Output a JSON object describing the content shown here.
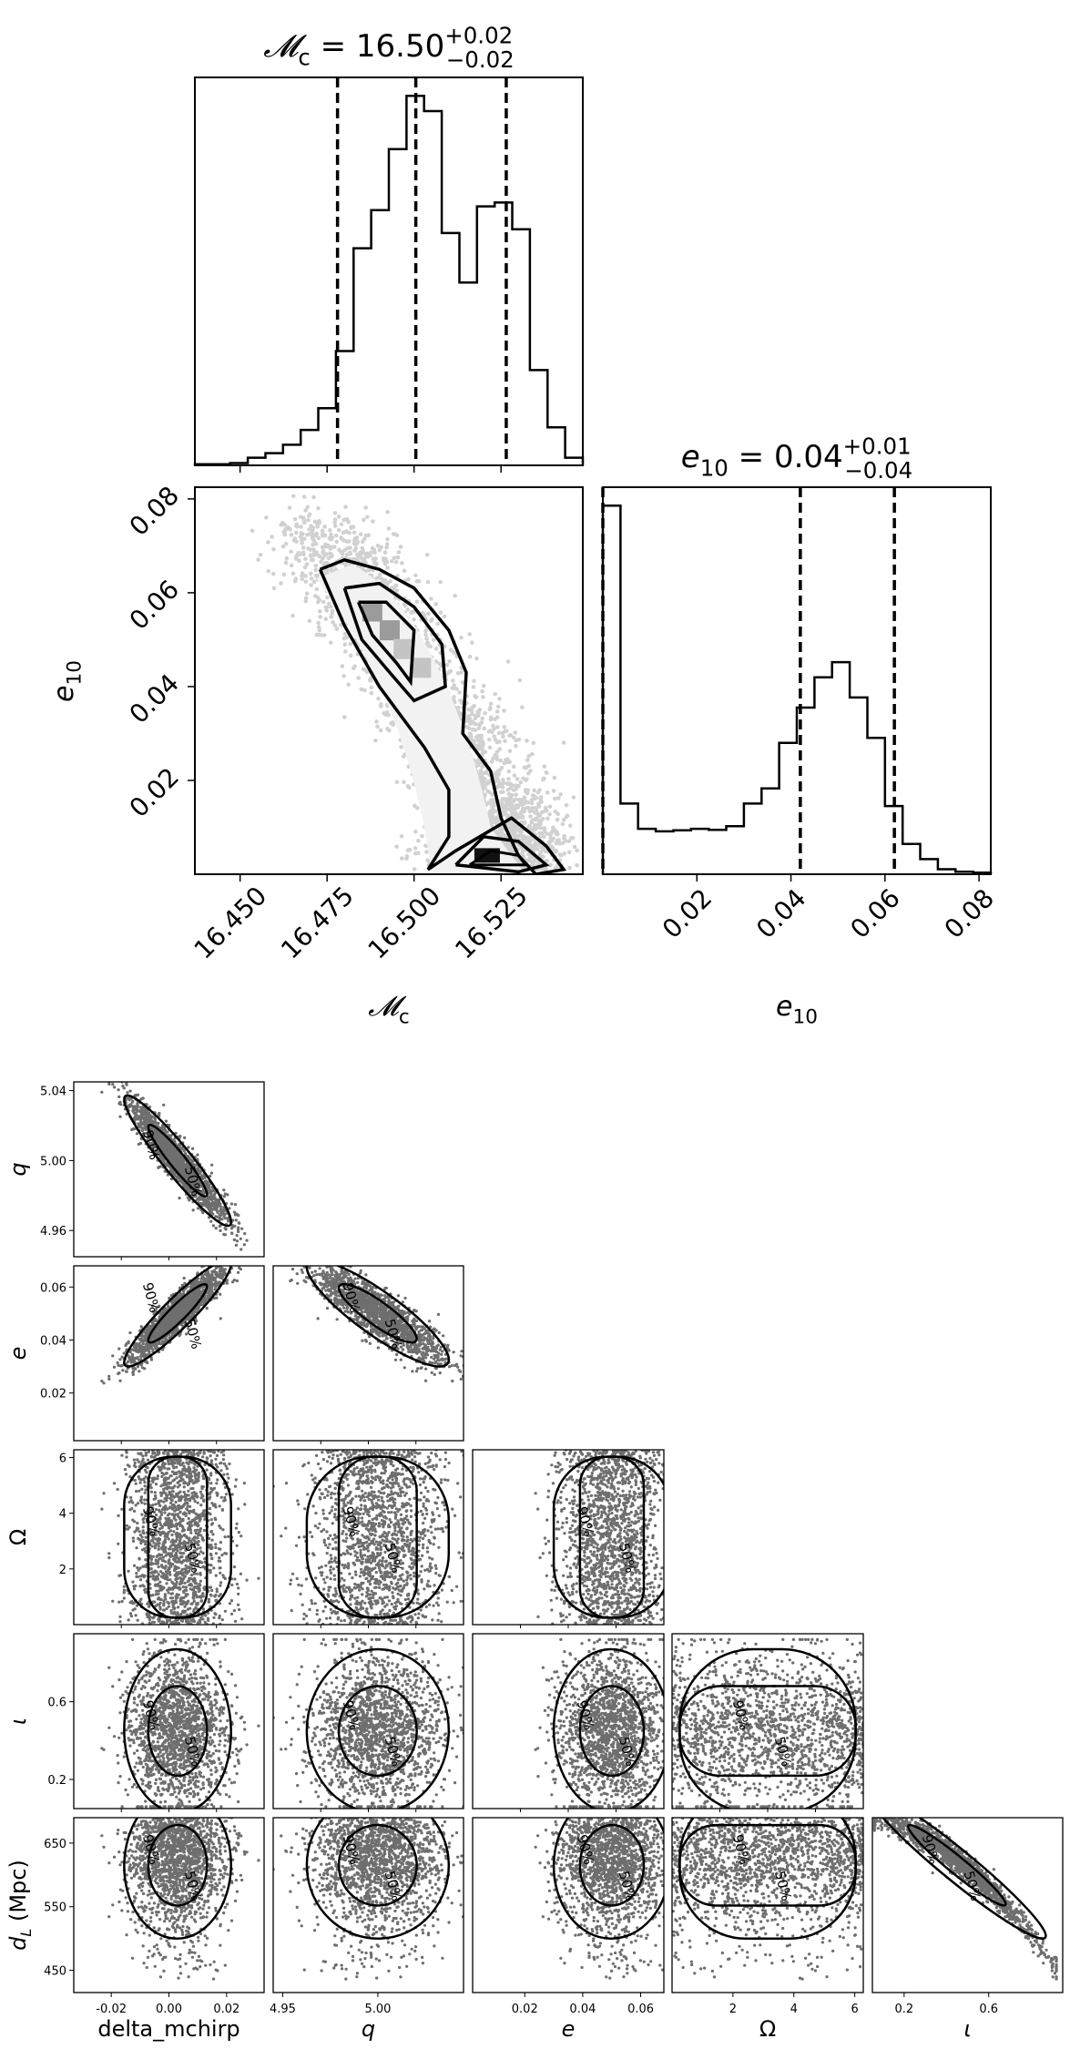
{
  "chart_data": [
    {
      "type": "histogram",
      "panel": "top-corner-mc",
      "title": {
        "sym": "𝓜",
        "sub": "c",
        "val": "16.50",
        "plus": "+0.02",
        "minus": "−0.02"
      },
      "bins": [
        16.437,
        16.5485
      ],
      "counts": [
        0.3,
        0.3,
        0.6,
        2.0,
        3.2,
        5.4,
        9.3,
        15.0,
        30.0,
        57.0,
        67.0,
        83.0,
        97.0,
        93.0,
        61.0,
        48.0,
        68.0,
        69.0,
        62.0,
        25.0,
        10.0,
        2.0
      ],
      "quantiles": [
        16.478,
        16.5005,
        16.5265
      ]
    },
    {
      "type": "histogram",
      "panel": "top-corner-e10",
      "title": {
        "sym": "e",
        "sub": "10",
        "val": "0.04",
        "plus": "+0.01",
        "minus": "−0.04"
      },
      "bins": [
        0.0,
        0.0825
      ],
      "counts": [
        73.0,
        14.0,
        9.0,
        8.5,
        8.7,
        9.0,
        8.8,
        9.5,
        14.0,
        17.0,
        26.0,
        33.0,
        39.0,
        42.0,
        35.0,
        27.0,
        13.5,
        6.0,
        3.0,
        1.0,
        0.5,
        0.3
      ],
      "quantiles": [
        0.0,
        0.042,
        0.062
      ]
    },
    {
      "type": "scatter",
      "panel": "top-corner-joint",
      "xlim": [
        16.437,
        16.5485
      ],
      "ylim": [
        0.0,
        0.0825
      ],
      "xticks": [
        "16.450",
        "16.475",
        "16.500",
        "16.525"
      ],
      "yticks": [
        "0.02",
        "0.04",
        "0.06",
        "0.08"
      ],
      "e10_ticks": [
        "0.02",
        "0.04",
        "0.06",
        "0.08"
      ],
      "xlabel": {
        "sym": "𝓜",
        "sub": "c"
      },
      "ylabel": {
        "sym": "e",
        "sub": "10"
      },
      "e10_xlabel": {
        "sym": "e",
        "sub": "10"
      }
    },
    {
      "type": "scatter",
      "panel": "bottom-corner",
      "columns": [
        "delta_mchirp",
        "q",
        "e",
        "Omega",
        "iota"
      ],
      "labels": [
        "delta_mchirp",
        "q",
        "e",
        "Ω",
        "ι"
      ],
      "row_labels": [
        "q",
        "e",
        "Ω",
        "ι",
        "d_L (Mpc)"
      ],
      "contour_labels": [
        "50%",
        "90%"
      ],
      "ranges": {
        "delta_mchirp": [
          -0.033,
          0.033
        ],
        "q": [
          4.945,
          5.045
        ],
        "e": [
          0.002,
          0.068
        ],
        "Omega": [
          0.0,
          6.28
        ],
        "iota": [
          0.05,
          0.95
        ],
        "d_L": [
          415,
          690
        ]
      },
      "ticks": {
        "delta_mchirp": [
          "-0.02",
          "0.00",
          "0.02"
        ],
        "q": [
          "4.96",
          "5.00",
          "5.04"
        ],
        "q_bottom": [
          "4.95",
          "5.00"
        ],
        "e": [
          "0.02",
          "0.04",
          "0.06"
        ],
        "Omega": [
          "2",
          "4",
          "6"
        ],
        "iota": [
          "0.2",
          "0.6"
        ],
        "d_L": [
          "450",
          "550",
          "650"
        ]
      }
    }
  ]
}
